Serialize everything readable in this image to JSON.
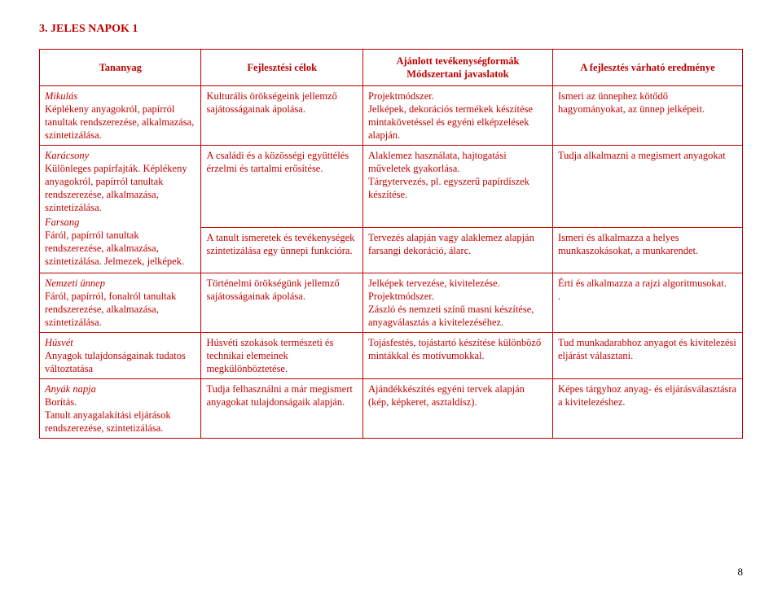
{
  "heading": "3. JELES NAPOK 1",
  "headers": {
    "c1": "Tananyag",
    "c2": "Fejlesztési célok",
    "c3_line1": "Ajánlott tevékenységformák",
    "c3_line2": "Módszertani javaslatok",
    "c4": "A fejlesztés várható eredménye"
  },
  "rows": [
    {
      "c1_title": "Mikulás",
      "c1_body": "Képlékeny anyagokról, papírról tanultak rendszerezése, alkalmazása, szintetizálása.",
      "c2": "Kulturális örökségeink jellemző sajátosságainak ápolása.",
      "c3": "Projektmódszer.\nJelképek, dekorációs termékek készítése mintakövetéssel és egyéni elképzelések alapján.",
      "c4": "Ismeri az ünnephez kötődő hagyományokat, az ünnep jelképeit."
    },
    {
      "merged_col1_title1": "Karácsony",
      "merged_col1_body1": "Különleges papírfajták. Képlékeny anyagokról, papírról tanultak rendszerezése, alkalmazása, szintetizálása.",
      "merged_col1_title2": "Farsang",
      "merged_col1_body2": "Fáról, papírról tanultak rendszerezése, alkalmazása, szintetizálása. Jelmezek, jelképek.",
      "sub": [
        {
          "c2": "A családi és a közösségi együttélés érzelmi és tartalmi erősítése.",
          "c3": "Alaklemez használata, hajtogatási műveletek gyakorlása.\nTárgytervezés, pl. egyszerű papírdíszek készítése.",
          "c4": "Tudja alkalmazni a megismert anyagokat"
        },
        {
          "c2": "A tanult ismeretek és tevékenységek szintetizálása egy ünnepi funkcióra.",
          "c3": "Tervezés alapján vagy alaklemez alapján farsangi dekoráció, álarc.",
          "c4": "Ismeri és alkalmazza a helyes munkaszokásokat, a munkarendet."
        }
      ]
    },
    {
      "c1_title": "Nemzeti ünnep",
      "c1_body": "Fáról, papírról, fonalról tanultak rendszerezése, alkalmazása, szintetizálása.",
      "c2": "Történelmi örökségünk jellemző sajátosságainak ápolása.",
      "c3": "Jelképek tervezése, kivitelezése.\nProjektmódszer.\nZászló és nemzeti színű masni készítése, anyagválasztás a kivitelezéséhez.",
      "c4": "Érti és alkalmazza a rajzi algoritmusokat.\n."
    },
    {
      "c1_title": "Húsvét",
      "c1_body": "Anyagok tulajdonságainak tudatos változtatása",
      "c2": "Húsvéti szokások természeti és technikai elemeinek megkülönböztetése.",
      "c3": "Tojásfestés, tojástartó készítése különböző mintákkal és motívumokkal.",
      "c4": "Tud munkadarabhoz anyagot és kivitelezési eljárást választani."
    },
    {
      "c1_title": "Anyák napja",
      "c1_body": "Borítás.\nTanult anyagalakítási eljárások rendszerezése, szintetizálása.",
      "c2": "Tudja felhasználni a már megismert anyagokat tulajdonságaik alapján.",
      "c3": "Ajándékkészítés egyéni tervek alapján (kép, képkeret, asztaldísz).",
      "c4": "Képes tárgyhoz anyag- és eljárásválasztásra a kivitelezéshez."
    }
  ],
  "page_number": "8"
}
